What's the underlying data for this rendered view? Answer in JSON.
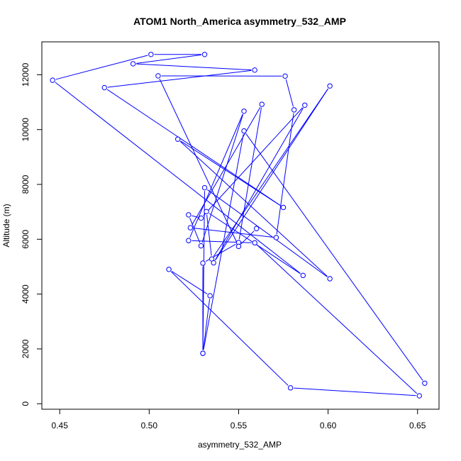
{
  "chart_data": {
    "type": "line",
    "title": "ATOM1 North_America asymmetry_532_AMP",
    "xlabel": "asymmetry_532_AMP",
    "ylabel": "Altitude (m)",
    "xlim": [
      0.44,
      0.662
    ],
    "ylim": [
      -200,
      13200
    ],
    "xticks": [
      0.45,
      0.5,
      0.55,
      0.6,
      0.65
    ],
    "xtick_labels": [
      "0.45",
      "0.50",
      "0.55",
      "0.60",
      "0.65"
    ],
    "yticks": [
      0,
      2000,
      4000,
      6000,
      8000,
      10000,
      12000
    ],
    "ytick_labels": [
      "0",
      "2000",
      "4000",
      "6000",
      "8000",
      "10000",
      "12000"
    ],
    "grid": false,
    "markers": "open-circle",
    "color": "#0000ff",
    "series": [
      {
        "x": [
          0.654,
          0.553,
          0.53,
          0.531,
          0.601,
          0.516,
          0.575,
          0.475,
          0.559,
          0.491,
          0.531,
          0.501,
          0.446,
          0.586,
          0.532,
          0.535,
          0.601,
          0.536,
          0.587,
          0.529,
          0.522,
          0.529,
          0.553,
          0.522,
          0.559,
          0.651,
          0.579,
          0.511,
          0.534,
          0.53,
          0.53,
          0.55,
          0.563,
          0.523,
          0.571,
          0.581,
          0.576,
          0.505,
          0.55,
          0.56
        ],
        "y": [
          750,
          9950,
          1840,
          7880,
          4560,
          9650,
          7160,
          11530,
          12170,
          12400,
          12740,
          12740,
          11800,
          4680,
          7010,
          5280,
          11590,
          5140,
          10890,
          6770,
          6890,
          5760,
          10670,
          5950,
          5870,
          290,
          580,
          4900,
          3940,
          1840,
          5130,
          5880,
          10920,
          6420,
          6060,
          10720,
          11950,
          11960,
          5740,
          6390
        ]
      }
    ]
  }
}
